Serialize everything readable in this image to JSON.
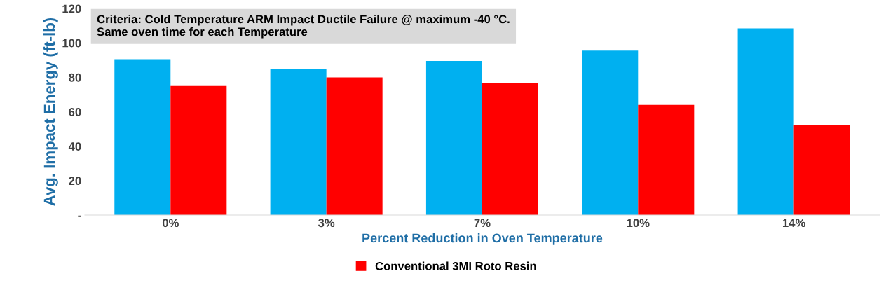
{
  "chart_data": {
    "type": "bar",
    "xlabel": "Percent Reduction in Oven Temperature",
    "ylabel": "Avg. Impact Energy (ft-lb)",
    "categories": [
      "0%",
      "3%",
      "7%",
      "10%",
      "14%"
    ],
    "series": [
      {
        "color": "#00b0f0",
        "values": [
          90.5,
          85,
          89.5,
          95.5,
          108.5
        ]
      },
      {
        "name": "Conventional 3MI Roto Resin",
        "color": "#ff0000",
        "values": [
          75,
          80,
          76.5,
          64,
          52.5
        ]
      }
    ],
    "ylim": [
      0,
      120
    ],
    "yticks": [
      {
        "value": 0,
        "label": "-"
      },
      20,
      40,
      60,
      80,
      100,
      120
    ],
    "annotations": [
      "Criteria: Cold Temperature ARM Impact Ductile Failure @ maximum -40 °C.\nSame oven time for each Temperature"
    ],
    "legend": "bottom",
    "grid": false
  }
}
